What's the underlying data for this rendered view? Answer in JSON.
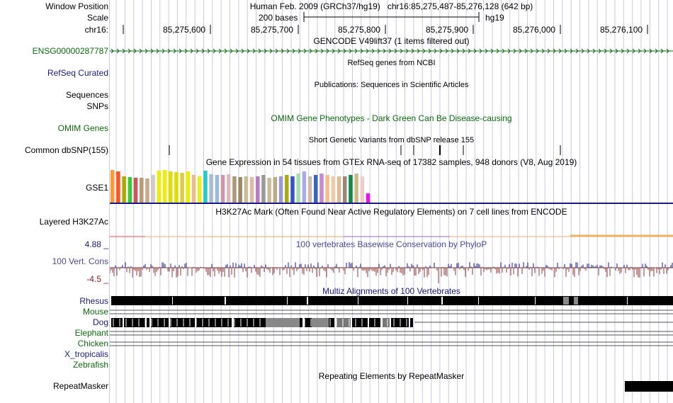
{
  "labels": {
    "window_position": "Window Position",
    "scale": "Scale",
    "chrom": "chr16:",
    "ensg": "ENSG00000287787",
    "refseq": "RefSeq Curated",
    "sequences": "Sequences",
    "snps": "SNPs",
    "omim": "OMIM Genes",
    "dbsnp": "Common dbSNP(155)",
    "gse1": "GSE1",
    "h3k27ac": "Layered H3K27Ac",
    "cons_max": "4.88 _",
    "cons": "100 Vert. Cons",
    "cons_min": "-4.5 _",
    "species": [
      "Rhesus",
      "Mouse",
      "Dog",
      "Elephant",
      "Chicken",
      "X_tropicalis",
      "Zebrafish"
    ],
    "repeatmasker": "RepeatMasker"
  },
  "titles": {
    "assembly": "Human Feb. 2009 (GRCh37/hg19)",
    "position": "chr16:85,275,487-85,276,128 (642 bp)",
    "scale_bar": "200 bases",
    "scale_db": "hg19",
    "gencode": "GENCODE V49lift37 (1 items filtered out)",
    "refseq": "RefSeq genes from NCBI",
    "publications": "Publications: Sequences in Scientific Articles",
    "omim": "OMIM Gene Phenotypes - Dark Green Can Be Disease-causing",
    "dbsnp": "Short Genetic Variants from dbSNP release 155",
    "gtex": "Gene Expression in 54 tissues from GTEx RNA-seq of 17382 samples, 948 donors (V8, Aug 2019)",
    "h3k27ac": "H3K27Ac Mark (Often Found Near Active Regulatory Elements) on 7 cell lines from ENCODE",
    "phylop": "100 vertebrates Basewise Conservation by PhyloP",
    "multiz": "Multiz Alignments of 100 Vertebrates",
    "repeatmasker": "Repeating Elements by RepeatMasker"
  },
  "ruler": {
    "ticks": [
      "85,275,600",
      "85,275,700",
      "85,275,800",
      "85,275,900",
      "85,276,000",
      "85,276,100"
    ]
  },
  "colors": {
    "track_navy": "#1a1a80",
    "gene_green": "#0b6b0b",
    "cons_positive": "#1a1a80",
    "cons_negative": "#8b3a3a",
    "grid": "#c8c8e6"
  },
  "gtex_tissue_colors": [
    "#ff9933",
    "#ff5522",
    "#aaaa00",
    "#33cc33",
    "#cc5555",
    "#bb9977",
    "#ccaa88",
    "#cccccc",
    "#eeee00",
    "#eeee00",
    "#dddd00",
    "#dddd00",
    "#ddcc44",
    "#eeee00",
    "#eebb88",
    "#eeee11",
    "#22cccc",
    "#aabbcc",
    "#99bbdd",
    "#cc99aa",
    "#ddbbbb",
    "#aa9977",
    "#998866",
    "#ccbb99",
    "#ddbbaa",
    "#bb77cc",
    "#999999",
    "#ccbb99",
    "#bbaa88",
    "#9999dd",
    "#aaaa11",
    "#3355cc",
    "#aaddaa",
    "#aaaaee",
    "#ccbbaa",
    "#3366cc",
    "#cc88cc",
    "#ffbb88",
    "#eeccaa",
    "#ddbb99",
    "#998877",
    "#118844",
    "#ccbb88",
    "#eecccc",
    "#ee11ee"
  ]
}
